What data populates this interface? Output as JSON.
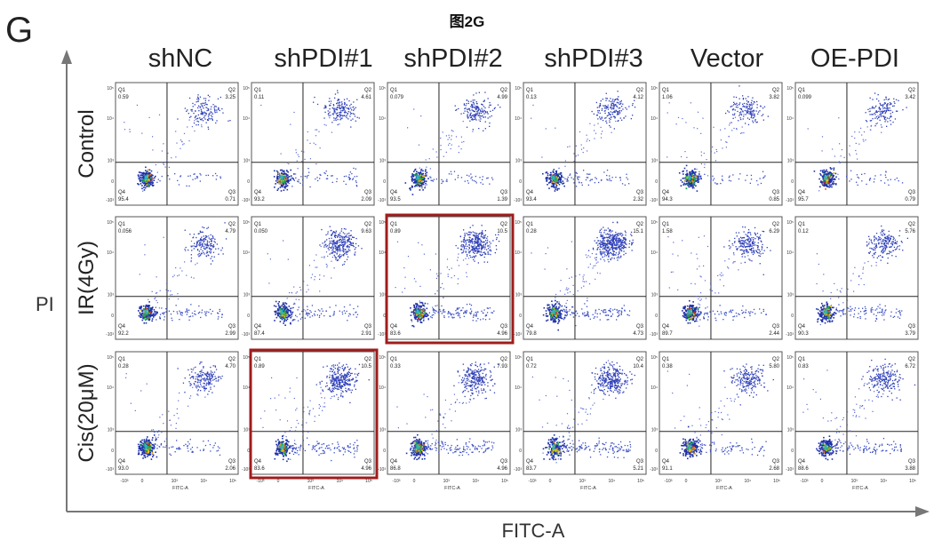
{
  "panel_letter": "G",
  "figure_title": "图2G",
  "axis_x_title": "FITC-A",
  "axis_y_title": "PI",
  "chart_data": {
    "type": "scatter",
    "xlabel": "FITC-A",
    "ylabel": "PI",
    "x_ticks": [
      "-10³",
      "0",
      "10³",
      "10⁴",
      "10⁵"
    ],
    "y_ticks": [
      "10⁵",
      "10⁴",
      "10³",
      "0",
      "-10³"
    ],
    "columns": [
      "shNC",
      "shPDI#1",
      "shPDI#2",
      "shPDI#3",
      "Vector",
      "OE-PDI"
    ],
    "rows": [
      "Control",
      "IR(4Gy)",
      "Cis(20μM)"
    ],
    "quadrant_labels": [
      "Q1",
      "Q2",
      "Q3",
      "Q4"
    ],
    "highlight_color": "#a01c1c",
    "highlighted_plots": [
      [
        1,
        2
      ],
      [
        2,
        1
      ]
    ],
    "quadrant_values": [
      [
        {
          "Q1": "0.59",
          "Q2": "3.25",
          "Q3": "0.71",
          "Q4": "95.4"
        },
        {
          "Q1": "0.11",
          "Q2": "4.61",
          "Q3": "2.09",
          "Q4": "93.2"
        },
        {
          "Q1": "0.079",
          "Q2": "4.99",
          "Q3": "1.39",
          "Q4": "93.5"
        },
        {
          "Q1": "0.13",
          "Q2": "4.12",
          "Q3": "2.32",
          "Q4": "93.4"
        },
        {
          "Q1": "1.06",
          "Q2": "3.82",
          "Q3": "0.85",
          "Q4": "94.3"
        },
        {
          "Q1": "0.099",
          "Q2": "3.42",
          "Q3": "0.79",
          "Q4": "95.7"
        }
      ],
      [
        {
          "Q1": "0.056",
          "Q2": "4.79",
          "Q3": "2.99",
          "Q4": "92.2"
        },
        {
          "Q1": "0.050",
          "Q2": "9.63",
          "Q3": "2.91",
          "Q4": "87.4"
        },
        {
          "Q1": "0.89",
          "Q2": "10.5",
          "Q3": "4.96",
          "Q4": "83.6"
        },
        {
          "Q1": "0.28",
          "Q2": "15.1",
          "Q3": "4.73",
          "Q4": "79.8"
        },
        {
          "Q1": "1.58",
          "Q2": "6.29",
          "Q3": "2.44",
          "Q4": "89.7"
        },
        {
          "Q1": "0.12",
          "Q2": "5.76",
          "Q3": "3.79",
          "Q4": "90.3"
        }
      ],
      [
        {
          "Q1": "0.28",
          "Q2": "4.70",
          "Q3": "2.06",
          "Q4": "93.0"
        },
        {
          "Q1": "0.89",
          "Q2": "10.5",
          "Q3": "4.96",
          "Q4": "83.6"
        },
        {
          "Q1": "0.33",
          "Q2": "7.93",
          "Q3": "4.96",
          "Q4": "86.8"
        },
        {
          "Q1": "0.72",
          "Q2": "10.4",
          "Q3": "5.21",
          "Q4": "83.7"
        },
        {
          "Q1": "0.38",
          "Q2": "5.80",
          "Q3": "2.68",
          "Q4": "91.1"
        },
        {
          "Q1": "0.83",
          "Q2": "6.72",
          "Q3": "3.88",
          "Q4": "88.6"
        }
      ]
    ]
  }
}
